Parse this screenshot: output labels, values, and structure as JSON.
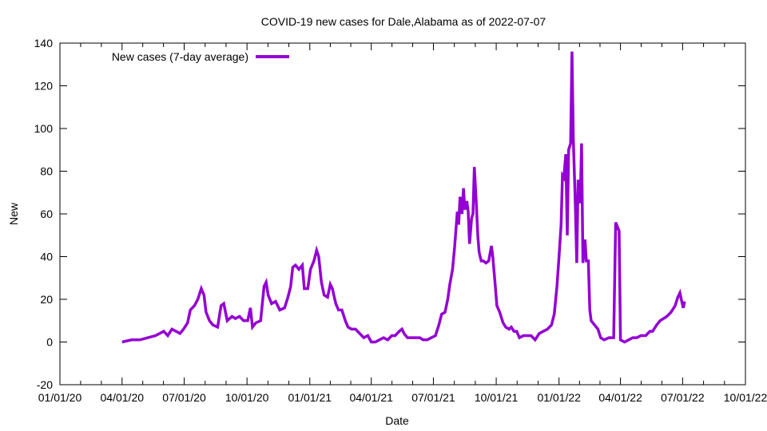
{
  "chart_data": {
    "type": "line",
    "title": "COVID-19 new cases for Dale,Alabama as of 2022-07-07",
    "xlabel": "Date",
    "ylabel": "New",
    "x_units": "days since 01/01/20",
    "xlim": [
      0,
      1004
    ],
    "ylim": [
      -20,
      140
    ],
    "yticks": [
      -20,
      0,
      20,
      40,
      60,
      80,
      100,
      120,
      140
    ],
    "xticks": [
      {
        "value": 0,
        "label": "01/01/20"
      },
      {
        "value": 91,
        "label": "04/01/20"
      },
      {
        "value": 182,
        "label": "07/01/20"
      },
      {
        "value": 274,
        "label": "10/01/20"
      },
      {
        "value": 366,
        "label": "01/01/21"
      },
      {
        "value": 456,
        "label": "04/01/21"
      },
      {
        "value": 547,
        "label": "07/01/21"
      },
      {
        "value": 639,
        "label": "10/01/21"
      },
      {
        "value": 731,
        "label": "01/01/22"
      },
      {
        "value": 821,
        "label": "04/01/22"
      },
      {
        "value": 912,
        "label": "07/01/22"
      },
      {
        "value": 1004,
        "label": "10/01/22"
      }
    ],
    "grid": false,
    "legend_position": "top-left",
    "series": [
      {
        "name": "New cases (7-day average)",
        "color": "#9400d3",
        "points": [
          [
            91,
            0
          ],
          [
            105,
            1
          ],
          [
            117,
            1
          ],
          [
            129,
            2
          ],
          [
            140,
            3
          ],
          [
            146,
            4
          ],
          [
            152,
            5
          ],
          [
            158,
            3
          ],
          [
            164,
            6
          ],
          [
            170,
            5
          ],
          [
            176,
            4
          ],
          [
            181,
            6
          ],
          [
            187,
            9
          ],
          [
            191,
            15
          ],
          [
            197,
            17
          ],
          [
            202,
            20
          ],
          [
            207,
            25
          ],
          [
            211,
            22
          ],
          [
            214,
            14
          ],
          [
            219,
            10
          ],
          [
            224,
            8
          ],
          [
            231,
            7
          ],
          [
            236,
            17
          ],
          [
            240,
            18
          ],
          [
            245,
            10
          ],
          [
            252,
            12
          ],
          [
            257,
            11
          ],
          [
            263,
            12
          ],
          [
            269,
            10
          ],
          [
            275,
            10
          ],
          [
            279,
            16
          ],
          [
            282,
            7
          ],
          [
            287,
            9
          ],
          [
            294,
            10
          ],
          [
            299,
            26
          ],
          [
            302,
            28
          ],
          [
            305,
            22
          ],
          [
            310,
            18
          ],
          [
            316,
            19
          ],
          [
            322,
            15
          ],
          [
            329,
            16
          ],
          [
            334,
            21
          ],
          [
            338,
            26
          ],
          [
            341,
            35
          ],
          [
            345,
            36
          ],
          [
            350,
            34
          ],
          [
            355,
            36
          ],
          [
            358,
            25
          ],
          [
            363,
            25
          ],
          [
            367,
            34
          ],
          [
            372,
            38
          ],
          [
            376,
            43
          ],
          [
            379,
            40
          ],
          [
            383,
            28
          ],
          [
            387,
            22
          ],
          [
            392,
            21
          ],
          [
            396,
            27
          ],
          [
            399,
            25
          ],
          [
            404,
            18
          ],
          [
            408,
            15
          ],
          [
            413,
            15
          ],
          [
            418,
            10
          ],
          [
            422,
            7
          ],
          [
            427,
            6
          ],
          [
            433,
            6
          ],
          [
            439,
            4
          ],
          [
            445,
            2
          ],
          [
            451,
            3
          ],
          [
            456,
            0
          ],
          [
            462,
            0
          ],
          [
            468,
            1
          ],
          [
            474,
            2
          ],
          [
            480,
            1
          ],
          [
            486,
            3
          ],
          [
            491,
            3
          ],
          [
            497,
            5
          ],
          [
            501,
            6
          ],
          [
            504,
            4
          ],
          [
            509,
            2
          ],
          [
            515,
            2
          ],
          [
            521,
            2
          ],
          [
            527,
            2
          ],
          [
            532,
            1
          ],
          [
            538,
            1
          ],
          [
            544,
            2
          ],
          [
            550,
            3
          ],
          [
            555,
            8
          ],
          [
            559,
            13
          ],
          [
            564,
            14
          ],
          [
            568,
            20
          ],
          [
            571,
            27
          ],
          [
            575,
            34
          ],
          [
            578,
            44
          ],
          [
            582,
            61
          ],
          [
            584,
            55
          ],
          [
            586,
            68
          ],
          [
            589,
            60
          ],
          [
            591,
            72
          ],
          [
            593,
            62
          ],
          [
            596,
            66
          ],
          [
            598,
            61
          ],
          [
            600,
            46
          ],
          [
            603,
            58
          ],
          [
            605,
            60
          ],
          [
            607,
            82
          ],
          [
            610,
            64
          ],
          [
            612,
            50
          ],
          [
            614,
            42
          ],
          [
            617,
            38
          ],
          [
            620,
            38
          ],
          [
            624,
            37
          ],
          [
            628,
            38
          ],
          [
            632,
            45
          ],
          [
            634,
            40
          ],
          [
            638,
            25
          ],
          [
            640,
            17
          ],
          [
            644,
            14
          ],
          [
            649,
            9
          ],
          [
            653,
            7
          ],
          [
            658,
            6
          ],
          [
            661,
            7
          ],
          [
            665,
            5
          ],
          [
            669,
            5
          ],
          [
            673,
            2
          ],
          [
            679,
            3
          ],
          [
            685,
            3
          ],
          [
            690,
            3
          ],
          [
            696,
            1
          ],
          [
            702,
            4
          ],
          [
            708,
            5
          ],
          [
            714,
            6
          ],
          [
            720,
            8
          ],
          [
            724,
            13
          ],
          [
            728,
            26
          ],
          [
            731,
            40
          ],
          [
            734,
            55
          ],
          [
            736,
            78
          ],
          [
            738,
            77
          ],
          [
            741,
            88
          ],
          [
            743,
            50
          ],
          [
            745,
            90
          ],
          [
            748,
            93
          ],
          [
            750,
            136
          ],
          [
            752,
            95
          ],
          [
            755,
            63
          ],
          [
            757,
            37
          ],
          [
            759,
            76
          ],
          [
            762,
            65
          ],
          [
            764,
            93
          ],
          [
            766,
            37
          ],
          [
            769,
            48
          ],
          [
            771,
            38
          ],
          [
            774,
            38
          ],
          [
            776,
            15
          ],
          [
            778,
            10
          ],
          [
            783,
            8
          ],
          [
            788,
            6
          ],
          [
            792,
            2
          ],
          [
            797,
            1
          ],
          [
            804,
            2
          ],
          [
            811,
            2
          ],
          [
            814,
            56
          ],
          [
            819,
            52
          ],
          [
            821,
            1
          ],
          [
            827,
            0
          ],
          [
            833,
            1
          ],
          [
            839,
            2
          ],
          [
            845,
            2
          ],
          [
            851,
            3
          ],
          [
            858,
            3
          ],
          [
            864,
            5
          ],
          [
            868,
            5
          ],
          [
            874,
            8
          ],
          [
            879,
            10
          ],
          [
            884,
            11
          ],
          [
            889,
            12
          ],
          [
            895,
            14
          ],
          [
            901,
            17
          ],
          [
            905,
            21
          ],
          [
            908,
            23
          ],
          [
            910,
            20
          ],
          [
            913,
            16
          ],
          [
            915,
            19
          ]
        ]
      }
    ]
  }
}
